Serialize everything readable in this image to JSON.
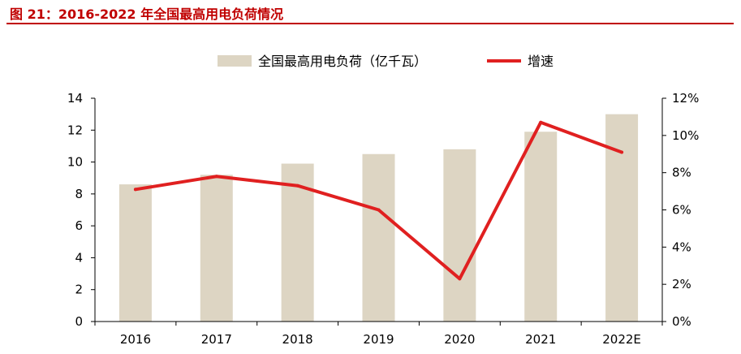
{
  "figure": {
    "title": "图 21：2016-2022 年全国最高用电负荷情况"
  },
  "colors": {
    "bar": "#ddd5c3",
    "line": "#e02020",
    "title": "#c00000"
  },
  "chart_data": {
    "type": "bar",
    "categories": [
      "2016",
      "2017",
      "2018",
      "2019",
      "2020",
      "2021",
      "2022E"
    ],
    "series": [
      {
        "name": "全国最高用电负荷（亿千瓦）",
        "type": "bar",
        "axis": "left",
        "values": [
          8.6,
          9.2,
          9.9,
          10.5,
          10.8,
          11.9,
          13.0
        ]
      },
      {
        "name": "增速",
        "type": "line",
        "axis": "right",
        "values": [
          7.1,
          7.8,
          7.3,
          6.0,
          2.3,
          10.7,
          9.1
        ]
      }
    ],
    "y_left": {
      "lim": [
        0,
        14
      ],
      "ticks": [
        "0",
        "2",
        "4",
        "6",
        "8",
        "10",
        "12",
        "14"
      ]
    },
    "y_right": {
      "lim": [
        0,
        12
      ],
      "ticks": [
        "0%",
        "2%",
        "4%",
        "6%",
        "8%",
        "10%",
        "12%"
      ]
    },
    "legend": "top-center",
    "grid": false
  }
}
